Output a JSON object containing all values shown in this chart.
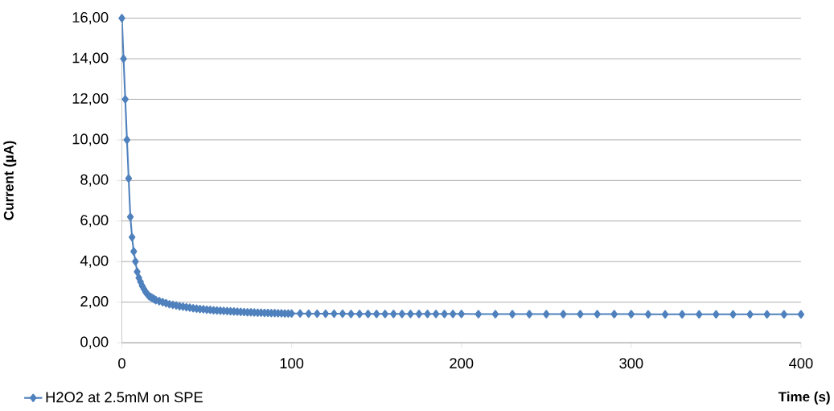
{
  "chart_data": {
    "type": "line",
    "xlabel": "Time (s)",
    "ylabel": "Current (µA)",
    "x": [
      0,
      1,
      2,
      3,
      4,
      5,
      6,
      7,
      8,
      9,
      10,
      11,
      12,
      13,
      14,
      15,
      16,
      17,
      18,
      19,
      20,
      22,
      24,
      26,
      28,
      30,
      32,
      34,
      36,
      38,
      40,
      42,
      44,
      46,
      48,
      50,
      52,
      54,
      56,
      58,
      60,
      62,
      64,
      66,
      68,
      70,
      72,
      74,
      76,
      78,
      80,
      82,
      84,
      86,
      88,
      90,
      92,
      94,
      96,
      98,
      100,
      105,
      110,
      115,
      120,
      125,
      130,
      135,
      140,
      145,
      150,
      155,
      160,
      165,
      170,
      175,
      180,
      185,
      190,
      195,
      200,
      210,
      220,
      230,
      240,
      250,
      260,
      270,
      280,
      290,
      300,
      310,
      320,
      330,
      340,
      350,
      360,
      370,
      380,
      390,
      400
    ],
    "series": [
      {
        "name": "H2O2 at 2.5mM on SPE",
        "color": "#4f81bd",
        "values": [
          16.0,
          14.0,
          12.0,
          10.0,
          8.1,
          6.2,
          5.2,
          4.5,
          4.0,
          3.5,
          3.2,
          3.0,
          2.8,
          2.65,
          2.5,
          2.4,
          2.3,
          2.25,
          2.2,
          2.15,
          2.1,
          2.05,
          2.0,
          1.95,
          1.9,
          1.87,
          1.84,
          1.8,
          1.78,
          1.75,
          1.73,
          1.7,
          1.68,
          1.66,
          1.65,
          1.63,
          1.62,
          1.6,
          1.59,
          1.58,
          1.57,
          1.56,
          1.55,
          1.54,
          1.53,
          1.52,
          1.51,
          1.5,
          1.5,
          1.49,
          1.48,
          1.48,
          1.47,
          1.47,
          1.46,
          1.46,
          1.45,
          1.45,
          1.44,
          1.44,
          1.44,
          1.44,
          1.43,
          1.43,
          1.43,
          1.43,
          1.43,
          1.42,
          1.42,
          1.42,
          1.42,
          1.42,
          1.42,
          1.42,
          1.42,
          1.42,
          1.42,
          1.42,
          1.42,
          1.42,
          1.42,
          1.41,
          1.41,
          1.41,
          1.41,
          1.41,
          1.41,
          1.41,
          1.41,
          1.41,
          1.41,
          1.4,
          1.4,
          1.4,
          1.4,
          1.4,
          1.4,
          1.4,
          1.4,
          1.4,
          1.4
        ]
      }
    ],
    "xlim": [
      0,
      400
    ],
    "ylim": [
      0,
      16
    ],
    "xticks": [
      0,
      100,
      200,
      300,
      400
    ],
    "yticks": [
      {
        "value": 0,
        "label": "0,00"
      },
      {
        "value": 2,
        "label": "2,00"
      },
      {
        "value": 4,
        "label": "4,00"
      },
      {
        "value": 6,
        "label": "6,00"
      },
      {
        "value": 8,
        "label": "8,00"
      },
      {
        "value": 10,
        "label": "10,00"
      },
      {
        "value": 12,
        "label": "12,00"
      },
      {
        "value": 14,
        "label": "14,00"
      },
      {
        "value": 16,
        "label": "16,00"
      }
    ],
    "grid": "y",
    "legend": "bottom left",
    "marker": "diamond",
    "line_style": "solid"
  }
}
